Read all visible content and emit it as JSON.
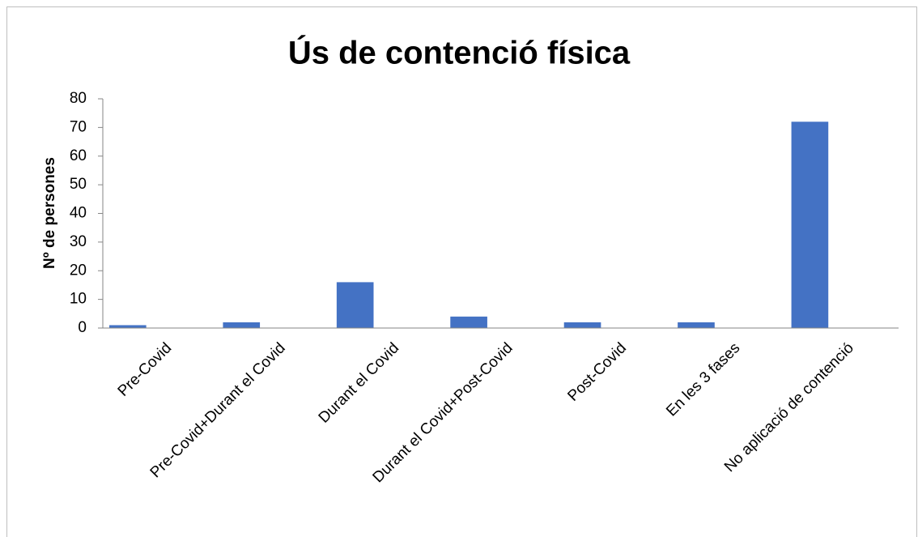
{
  "chart_data": {
    "type": "bar",
    "title": "Ús de contenció física",
    "y_label": "Nº de persones",
    "categories": [
      "Pre-Covid",
      "Pre-Covid+Durant el Covid",
      "Durant el Covid",
      "Durant el Covid+Post-Covid",
      "Post-Covid",
      "En les 3 fases",
      "No aplicació de contenció"
    ],
    "values": [
      1,
      2,
      16,
      4,
      2,
      2,
      72
    ],
    "color": "#4472c4",
    "ylim": [
      0,
      80
    ],
    "yticks": [
      0,
      10,
      20,
      30,
      40,
      50,
      60,
      70,
      80
    ],
    "grid": false
  }
}
